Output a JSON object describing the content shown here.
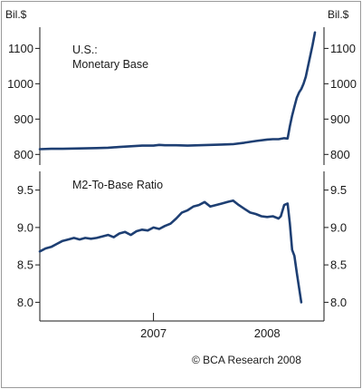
{
  "chart_data": [
    {
      "type": "line",
      "title": "",
      "annotation_lines": [
        "U.S.:",
        "Monetary Base"
      ],
      "unit_left": "Bil.$",
      "unit_right": "Bil.$",
      "ylim": [
        770,
        1160
      ],
      "yticks": [
        800,
        900,
        1000,
        1100
      ],
      "ytick_labels": [
        "800",
        "900",
        "1000",
        "1100"
      ],
      "series": [
        {
          "color": "#1e3f73",
          "x": [
            2006.5,
            2006.6,
            2006.7,
            2006.85,
            2007.0,
            2007.1,
            2007.2,
            2007.3,
            2007.4,
            2007.5,
            2007.55,
            2007.6,
            2007.7,
            2007.8,
            2007.9,
            2008.0,
            2008.1,
            2008.2,
            2008.3,
            2008.4,
            2008.5,
            2008.55,
            2008.6,
            2008.65,
            2008.68,
            2008.7,
            2008.72,
            2008.74,
            2008.76,
            2008.78,
            2008.8,
            2008.82,
            2008.84,
            2008.86,
            2008.88,
            2008.9,
            2008.92
          ],
          "values": [
            815,
            816,
            816,
            817,
            818,
            819,
            821,
            823,
            825,
            825,
            827,
            826,
            826,
            825,
            826,
            827,
            828,
            829,
            833,
            838,
            842,
            843,
            843,
            846,
            845,
            880,
            910,
            935,
            960,
            975,
            985,
            1000,
            1020,
            1050,
            1080,
            1110,
            1145
          ]
        }
      ]
    },
    {
      "type": "line",
      "title": "",
      "annotation_lines": [
        "M2-To-Base Ratio"
      ],
      "ylim": [
        7.75,
        9.75
      ],
      "yticks": [
        8.0,
        8.5,
        9.0,
        9.5
      ],
      "ytick_labels": [
        "8.0",
        "8.5",
        "9.0",
        "9.5"
      ],
      "series": [
        {
          "color": "#1e3f73",
          "x": [
            2006.5,
            2006.55,
            2006.6,
            2006.65,
            2006.7,
            2006.75,
            2006.8,
            2006.85,
            2006.9,
            2006.95,
            2007.0,
            2007.05,
            2007.1,
            2007.15,
            2007.2,
            2007.25,
            2007.3,
            2007.35,
            2007.4,
            2007.45,
            2007.5,
            2007.55,
            2007.6,
            2007.65,
            2007.7,
            2007.75,
            2007.8,
            2007.85,
            2007.9,
            2007.95,
            2008.0,
            2008.05,
            2008.1,
            2008.15,
            2008.2,
            2008.25,
            2008.3,
            2008.35,
            2008.4,
            2008.45,
            2008.5,
            2008.55,
            2008.6,
            2008.62,
            2008.65,
            2008.68,
            2008.7,
            2008.72,
            2008.74,
            2008.76,
            2008.78,
            2008.8
          ],
          "values": [
            8.68,
            8.72,
            8.74,
            8.78,
            8.82,
            8.84,
            8.86,
            8.84,
            8.86,
            8.85,
            8.86,
            8.88,
            8.9,
            8.87,
            8.92,
            8.94,
            8.9,
            8.95,
            8.97,
            8.96,
            9.0,
            8.98,
            9.02,
            9.05,
            9.12,
            9.2,
            9.23,
            9.28,
            9.3,
            9.34,
            9.28,
            9.3,
            9.32,
            9.34,
            9.36,
            9.3,
            9.25,
            9.2,
            9.18,
            9.15,
            9.14,
            9.15,
            9.12,
            9.15,
            9.3,
            9.32,
            9.05,
            8.7,
            8.62,
            8.4,
            8.2,
            8.0
          ]
        }
      ]
    }
  ],
  "xaxis": {
    "xlim": [
      2006.5,
      2009.0
    ],
    "year_labels": [
      {
        "year": 2007,
        "label": "2007"
      },
      {
        "year": 2008,
        "label": "2008"
      }
    ],
    "divider_x": 2007.5
  },
  "copyright": "© BCA Research 2008"
}
